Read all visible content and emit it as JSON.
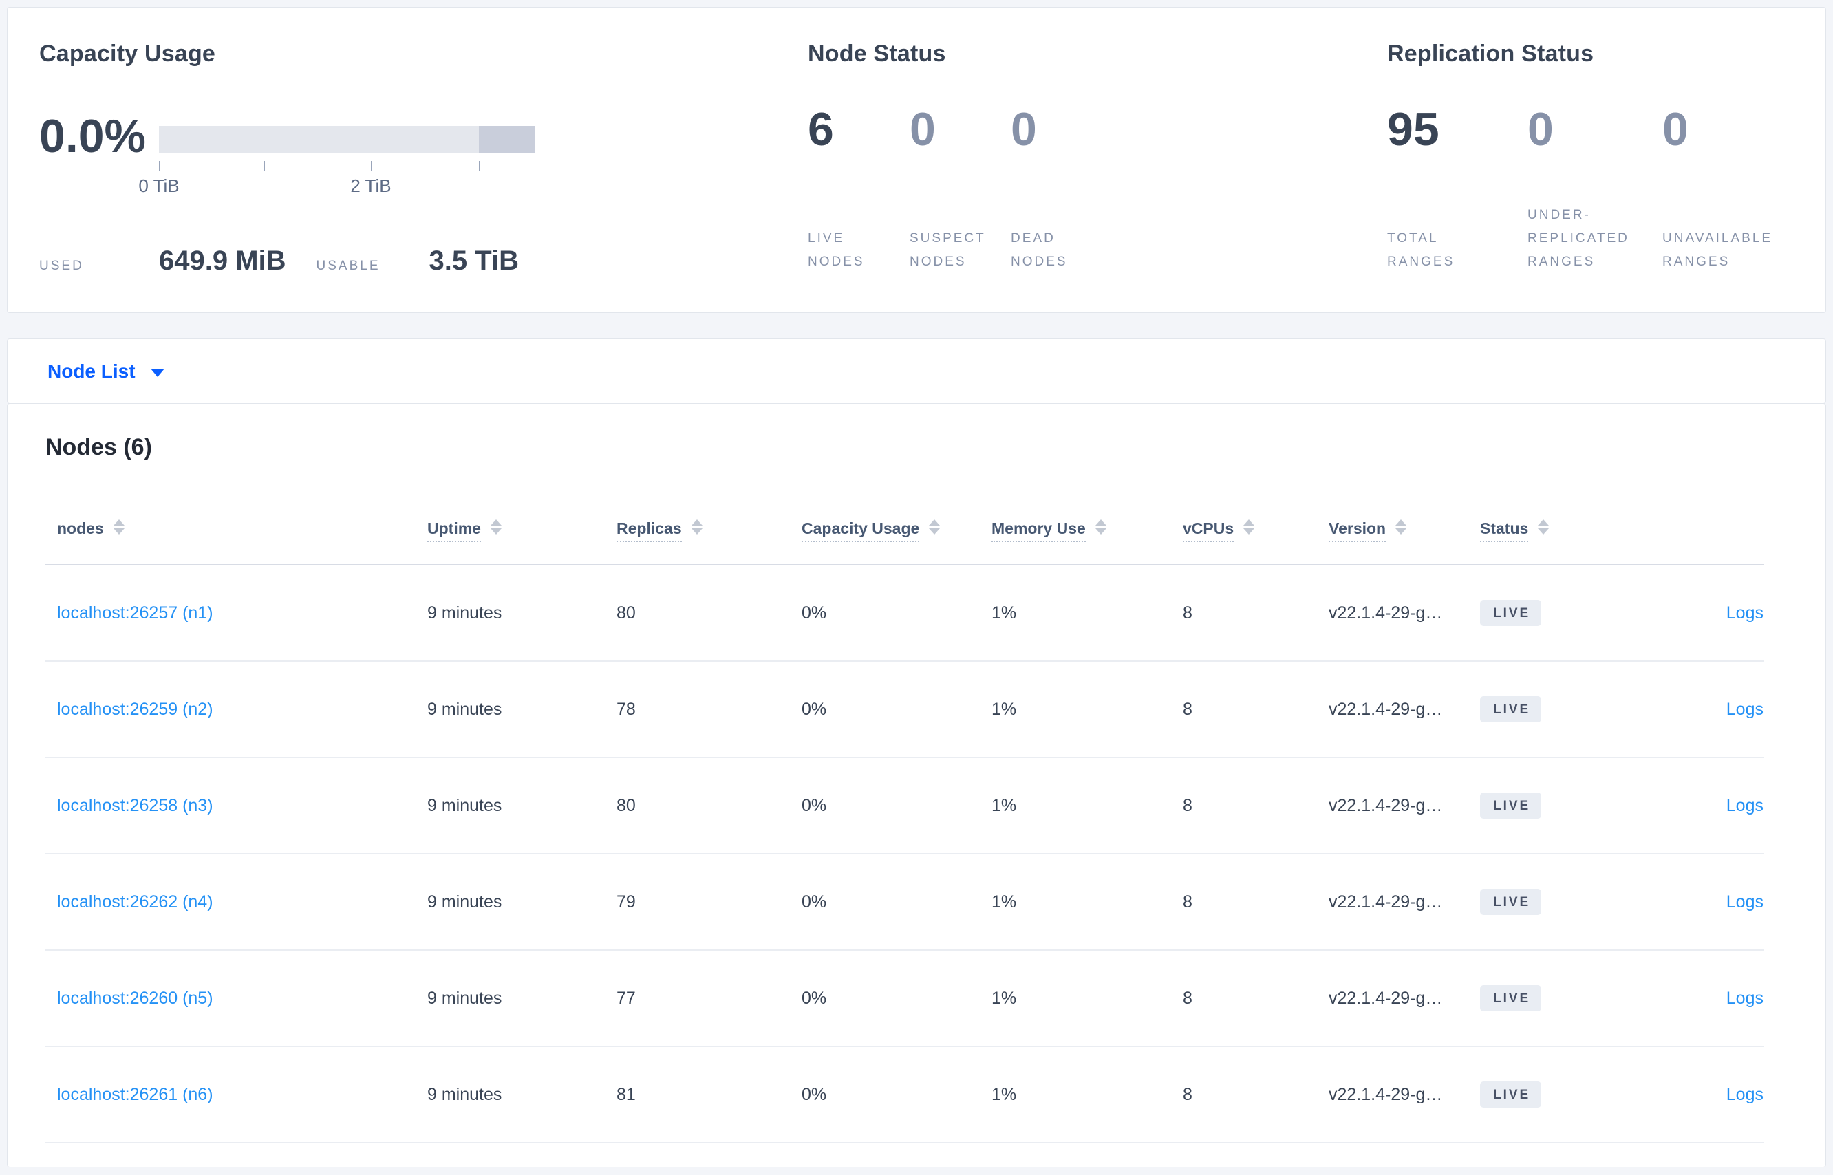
{
  "colors": {
    "accent_blue": "#0b5fff",
    "link_blue": "#2491f5",
    "badge_bg": "#e9edf3",
    "bar_track": "#e4e7ed",
    "bar_dark_segment": "#c9cedb",
    "page_bg": "#f3f5f9"
  },
  "summary": {
    "capacity": {
      "title": "Capacity Usage",
      "percent": "0.0%",
      "tick_labels": [
        "0 TiB",
        "2 TiB"
      ],
      "used_label": "USED",
      "used_value": "649.9 MiB",
      "usable_label": "USABLE",
      "usable_value": "3.5 TiB"
    },
    "node_status": {
      "title": "Node Status",
      "metrics": [
        {
          "value": "6",
          "label": "LIVE NODES"
        },
        {
          "value": "0",
          "label": "SUSPECT NODES"
        },
        {
          "value": "0",
          "label": "DEAD NODES"
        }
      ]
    },
    "replication": {
      "title": "Replication Status",
      "metrics": [
        {
          "value": "95",
          "label": "TOTAL RANGES"
        },
        {
          "value": "0",
          "label": "UNDER-REPLICATED RANGES"
        },
        {
          "value": "0",
          "label": "UNAVAILABLE RANGES"
        }
      ]
    }
  },
  "view_selector": {
    "label": "Node List"
  },
  "table": {
    "title": "Nodes (6)",
    "columns": [
      {
        "key": "nodes",
        "label": "nodes",
        "sortable": true,
        "tooltip": false
      },
      {
        "key": "uptime",
        "label": "Uptime",
        "sortable": true,
        "tooltip": true
      },
      {
        "key": "replicas",
        "label": "Replicas",
        "sortable": true,
        "tooltip": true
      },
      {
        "key": "capacity",
        "label": "Capacity Usage",
        "sortable": true,
        "tooltip": true
      },
      {
        "key": "memory",
        "label": "Memory Use",
        "sortable": true,
        "tooltip": true
      },
      {
        "key": "vcpus",
        "label": "vCPUs",
        "sortable": true,
        "tooltip": true
      },
      {
        "key": "version",
        "label": "Version",
        "sortable": true,
        "tooltip": true
      },
      {
        "key": "status",
        "label": "Status",
        "sortable": true,
        "tooltip": true
      },
      {
        "key": "logs",
        "label": "",
        "sortable": false,
        "tooltip": false
      }
    ],
    "rows": [
      {
        "nodes": "localhost:26257 (n1)",
        "uptime": "9 minutes",
        "replicas": "80",
        "capacity": "0%",
        "memory": "1%",
        "vcpus": "8",
        "version": "v22.1.4-29-g…",
        "status": "LIVE",
        "logs": "Logs"
      },
      {
        "nodes": "localhost:26259 (n2)",
        "uptime": "9 minutes",
        "replicas": "78",
        "capacity": "0%",
        "memory": "1%",
        "vcpus": "8",
        "version": "v22.1.4-29-g…",
        "status": "LIVE",
        "logs": "Logs"
      },
      {
        "nodes": "localhost:26258 (n3)",
        "uptime": "9 minutes",
        "replicas": "80",
        "capacity": "0%",
        "memory": "1%",
        "vcpus": "8",
        "version": "v22.1.4-29-g…",
        "status": "LIVE",
        "logs": "Logs"
      },
      {
        "nodes": "localhost:26262 (n4)",
        "uptime": "9 minutes",
        "replicas": "79",
        "capacity": "0%",
        "memory": "1%",
        "vcpus": "8",
        "version": "v22.1.4-29-g…",
        "status": "LIVE",
        "logs": "Logs"
      },
      {
        "nodes": "localhost:26260 (n5)",
        "uptime": "9 minutes",
        "replicas": "77",
        "capacity": "0%",
        "memory": "1%",
        "vcpus": "8",
        "version": "v22.1.4-29-g…",
        "status": "LIVE",
        "logs": "Logs"
      },
      {
        "nodes": "localhost:26261 (n6)",
        "uptime": "9 minutes",
        "replicas": "81",
        "capacity": "0%",
        "memory": "1%",
        "vcpus": "8",
        "version": "v22.1.4-29-g…",
        "status": "LIVE",
        "logs": "Logs"
      }
    ]
  }
}
